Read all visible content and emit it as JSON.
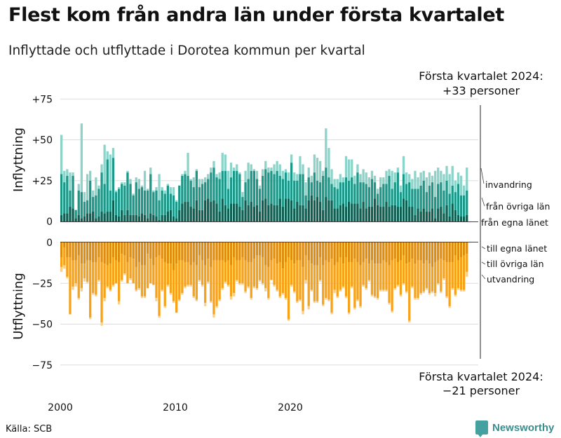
{
  "title": "Flest kom från andra län under första kvartalet",
  "subtitle": "Inflyttade och utflyttade i Dorotea kommun per kvartal",
  "source": "Källa: SCB",
  "brand": "Newsworthy",
  "colors": {
    "inv_own": "#0e5f52",
    "inv_other": "#1d9788",
    "inv_abroad": "#8dd3c9",
    "out_own": "#e08c0c",
    "out_other": "#f7a21b",
    "out_abroad": "#fbd08a",
    "grid": "#dddddd"
  },
  "chart_data": {
    "type": "bar",
    "stacked": true,
    "x_start": "2000 Q1",
    "x_ticks": [
      "2000",
      "2010",
      "2020"
    ],
    "top_panel": {
      "ylabel": "Inflyttning",
      "ylim": [
        0,
        75
      ],
      "yticks": [
        "+75",
        "+50",
        "+25",
        "0"
      ],
      "series_labels": [
        "från egna länet",
        "från övriga län",
        "invandring"
      ],
      "own_county": [
        4,
        5,
        5,
        9,
        8,
        2,
        4,
        2,
        3,
        5,
        5,
        6,
        2,
        3,
        6,
        5,
        6,
        6,
        13,
        4,
        3,
        7,
        4,
        7,
        4,
        4,
        4,
        3,
        5,
        4,
        2,
        5,
        4,
        3,
        1,
        4,
        4,
        6,
        7,
        3,
        2,
        7,
        11,
        12,
        12,
        9,
        8,
        13,
        7,
        7,
        13,
        14,
        12,
        13,
        11,
        6,
        14,
        10,
        8,
        11,
        11,
        11,
        9,
        7,
        13,
        10,
        12,
        9,
        10,
        6,
        13,
        14,
        10,
        11,
        10,
        10,
        14,
        9,
        14,
        14,
        13,
        8,
        12,
        10,
        10,
        8,
        13,
        16,
        13,
        15,
        12,
        7,
        15,
        13,
        13,
        8,
        8,
        10,
        11,
        9,
        12,
        11,
        11,
        11,
        8,
        12,
        8,
        9,
        9,
        14,
        10,
        9,
        9,
        12,
        9,
        10,
        10,
        9,
        9,
        14,
        13,
        9,
        9,
        4,
        8,
        6,
        8,
        6,
        6,
        8,
        2,
        8,
        9,
        5,
        10,
        3,
        11,
        7,
        4,
        3,
        3,
        4
      ],
      "other_county": [
        25,
        19,
        23,
        10,
        20,
        5,
        15,
        16,
        9,
        8,
        20,
        9,
        14,
        17,
        24,
        18,
        32,
        13,
        26,
        14,
        17,
        16,
        18,
        23,
        19,
        12,
        20,
        17,
        16,
        15,
        17,
        24,
        14,
        16,
        12,
        15,
        13,
        16,
        10,
        13,
        10,
        15,
        17,
        17,
        16,
        16,
        13,
        18,
        14,
        16,
        11,
        12,
        18,
        20,
        16,
        20,
        17,
        21,
        12,
        16,
        20,
        20,
        20,
        8,
        11,
        16,
        19,
        22,
        16,
        14,
        15,
        18,
        20,
        20,
        19,
        21,
        14,
        17,
        16,
        11,
        23,
        17,
        13,
        19,
        19,
        8,
        14,
        8,
        17,
        10,
        12,
        21,
        18,
        14,
        10,
        13,
        12,
        14,
        13,
        18,
        13,
        16,
        12,
        19,
        16,
        12,
        15,
        12,
        17,
        10,
        7,
        12,
        14,
        11,
        19,
        10,
        14,
        21,
        9,
        15,
        10,
        15,
        11,
        16,
        12,
        16,
        17,
        12,
        16,
        16,
        13,
        15,
        15,
        14,
        15,
        14,
        11,
        11,
        19,
        13,
        13,
        15
      ],
      "immigration": [
        24,
        7,
        4,
        11,
        2,
        0,
        4,
        42,
        6,
        16,
        6,
        4,
        11,
        2,
        5,
        24,
        5,
        22,
        6,
        1,
        1,
        1,
        2,
        1,
        3,
        1,
        3,
        6,
        1,
        12,
        1,
        4,
        1,
        2,
        16,
        2,
        2,
        1,
        4,
        5,
        1,
        0,
        1,
        2,
        14,
        1,
        6,
        1,
        5,
        3,
        3,
        3,
        3,
        4,
        2,
        4,
        11,
        10,
        11,
        9,
        2,
        4,
        1,
        3,
        7,
        10,
        4,
        1,
        5,
        2,
        4,
        5,
        3,
        2,
        6,
        6,
        7,
        5,
        2,
        5,
        5,
        5,
        4,
        11,
        6,
        8,
        6,
        4,
        11,
        14,
        13,
        3,
        24,
        18,
        9,
        5,
        6,
        5,
        3,
        13,
        13,
        11,
        5,
        5,
        5,
        8,
        7,
        6,
        5,
        4,
        3,
        6,
        4,
        8,
        4,
        11,
        6,
        3,
        4,
        11,
        7,
        5,
        6,
        11,
        7,
        8,
        6,
        9,
        8,
        4,
        16,
        10,
        7,
        10,
        9,
        12,
        12,
        7,
        7,
        12,
        6,
        14
      ]
    },
    "bottom_panel": {
      "ylabel": "Utflyttning",
      "ylim": [
        -75,
        0
      ],
      "yticks": [
        "0",
        "-25",
        "-50",
        "-75"
      ],
      "series_labels": [
        "till egna länet",
        "till övriga län",
        "utvandring"
      ],
      "own_county": [
        9,
        3,
        9,
        9,
        11,
        11,
        8,
        13,
        13,
        11,
        11,
        12,
        12,
        9,
        12,
        13,
        14,
        13,
        9,
        11,
        12,
        7,
        8,
        12,
        9,
        10,
        15,
        12,
        14,
        14,
        7,
        10,
        14,
        9,
        8,
        10,
        12,
        13,
        13,
        17,
        13,
        11,
        11,
        12,
        12,
        14,
        12,
        14,
        8,
        11,
        14,
        10,
        15,
        11,
        11,
        11,
        11,
        12,
        11,
        14,
        9,
        11,
        11,
        9,
        11,
        12,
        12,
        10,
        8,
        8,
        9,
        14,
        15,
        11,
        10,
        13,
        12,
        16,
        12,
        9,
        11,
        13,
        11,
        11,
        15,
        8,
        11,
        13,
        14,
        14,
        9,
        14,
        11,
        12,
        10,
        14,
        12,
        9,
        13,
        9,
        12,
        12,
        10,
        12,
        14,
        12,
        10,
        13,
        11,
        13,
        13,
        13,
        11,
        12,
        14,
        11,
        10,
        12,
        11,
        8,
        13,
        12,
        10,
        13,
        11,
        11,
        13,
        11,
        13,
        15,
        12,
        11,
        10,
        11,
        12,
        12,
        12,
        8,
        11,
        9,
        8,
        7
      ],
      "other_county": [
        6,
        11,
        12,
        35,
        16,
        14,
        26,
        15,
        9,
        13,
        35,
        19,
        20,
        14,
        37,
        21,
        13,
        16,
        17,
        14,
        24,
        16,
        11,
        13,
        13,
        15,
        14,
        16,
        19,
        19,
        21,
        15,
        12,
        25,
        37,
        19,
        27,
        13,
        18,
        19,
        30,
        24,
        20,
        15,
        14,
        12,
        21,
        21,
        15,
        15,
        23,
        14,
        21,
        33,
        28,
        24,
        17,
        12,
        15,
        19,
        22,
        12,
        14,
        16,
        19,
        15,
        22,
        17,
        20,
        15,
        16,
        14,
        19,
        12,
        16,
        16,
        21,
        15,
        22,
        38,
        15,
        17,
        25,
        24,
        27,
        15,
        28,
        16,
        22,
        22,
        14,
        24,
        23,
        23,
        33,
        15,
        21,
        20,
        14,
        24,
        31,
        15,
        30,
        23,
        25,
        14,
        18,
        10,
        21,
        20,
        21,
        16,
        18,
        17,
        23,
        31,
        18,
        14,
        21,
        17,
        17,
        36,
        17,
        21,
        23,
        20,
        17,
        17,
        18,
        15,
        19,
        14,
        20,
        11,
        21,
        27,
        16,
        24,
        17,
        20,
        21,
        11
      ],
      "emigration": [
        3,
        2,
        1,
        0,
        2,
        2,
        1,
        2,
        2,
        1,
        1,
        1,
        1,
        1,
        2,
        2,
        1,
        1,
        1,
        0,
        2,
        1,
        1,
        0,
        1,
        0,
        1,
        1,
        1,
        1,
        0,
        0,
        0,
        2,
        1,
        1,
        1,
        1,
        1,
        1,
        0,
        1,
        1,
        1,
        1,
        1,
        1,
        1,
        1,
        1,
        2,
        1,
        1,
        2,
        1,
        1,
        1,
        1,
        1,
        2,
        2,
        1,
        1,
        1,
        1,
        1,
        1,
        1,
        1,
        1,
        1,
        2,
        1,
        0,
        1,
        1,
        1,
        1,
        1,
        1,
        1,
        1,
        1,
        1,
        2,
        2,
        2,
        1,
        1,
        1,
        1,
        1,
        1,
        1,
        1,
        2,
        1,
        1,
        1,
        1,
        1,
        1,
        1,
        1,
        1,
        1,
        1,
        1,
        1,
        1,
        1,
        1,
        1,
        1,
        1,
        1,
        1,
        1,
        1,
        1,
        1,
        1,
        1,
        1,
        1,
        1,
        1,
        1,
        1,
        1,
        2,
        1,
        1,
        1,
        1,
        1,
        1,
        1,
        1,
        1,
        1,
        3
      ]
    },
    "annotations": {
      "top": "Första kvartalet 2024:\n+33 personer",
      "bottom": "Första kvartalet 2024:\n−21 personer"
    }
  }
}
